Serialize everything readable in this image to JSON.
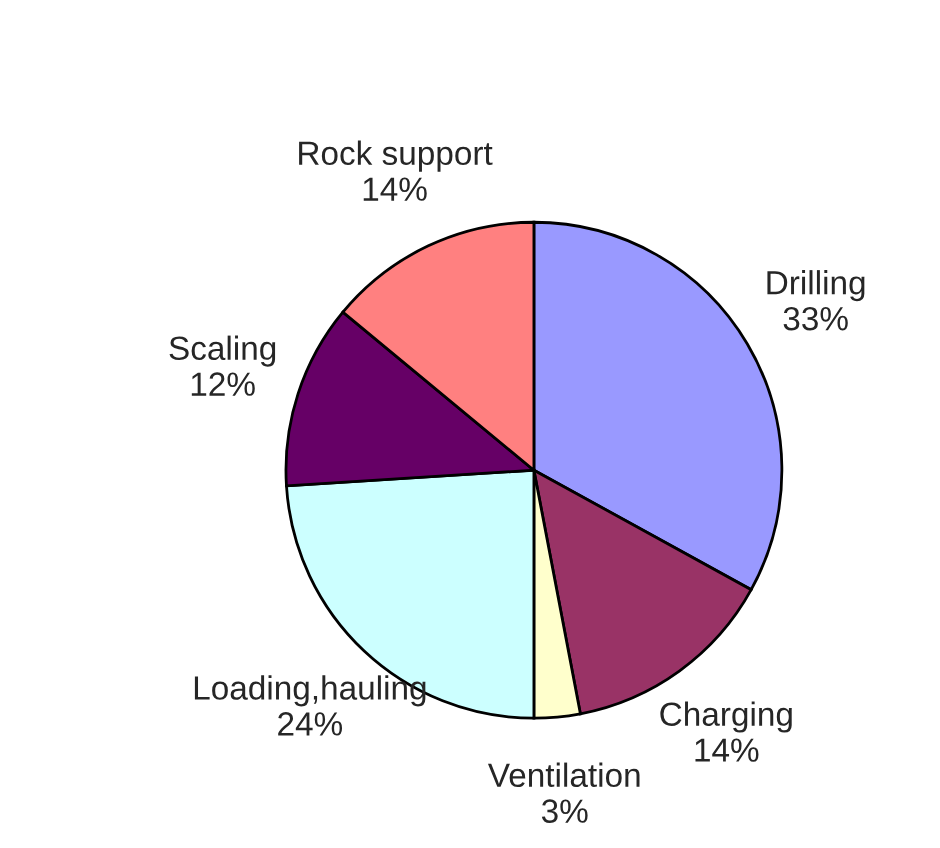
{
  "chart_data": {
    "type": "pie",
    "categories": [
      "Drilling",
      "Charging",
      "Ventilation",
      "Loading,hauling",
      "Scaling",
      "Rock support"
    ],
    "values": [
      33,
      14,
      3,
      24,
      12,
      14
    ],
    "value_labels": [
      "33%",
      "14%",
      "3%",
      "24%",
      "12%",
      "14%"
    ],
    "colors": [
      "#9999ff",
      "#993366",
      "#ffffcc",
      "#ccffff",
      "#660066",
      "#ff8080"
    ],
    "legend": false
  }
}
